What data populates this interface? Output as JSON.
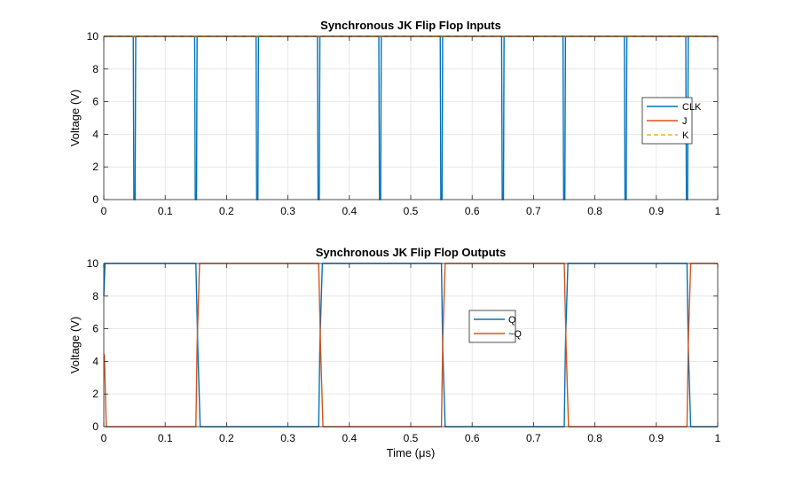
{
  "colors": {
    "blue": "#0072BD",
    "orange": "#D95319",
    "yellow": "#EDB120",
    "grid": "#e3e3e3",
    "axis": "#262626"
  },
  "chart_data": [
    {
      "type": "line",
      "title": "Synchronous JK Flip Flop Inputs",
      "xlabel": "",
      "ylabel": "Voltage (V)",
      "xlim": [
        0,
        1
      ],
      "ylim": [
        0,
        10
      ],
      "xticks": [
        "0",
        "0.1",
        "0.2",
        "0.3",
        "0.4",
        "0.5",
        "0.6",
        "0.7",
        "0.8",
        "0.9",
        "1"
      ],
      "yticks": [
        "0",
        "2",
        "4",
        "6",
        "8",
        "10"
      ],
      "grid": true,
      "legend_position": "right",
      "series": [
        {
          "name": "CLK",
          "color": "#0072BD",
          "dash": false,
          "x": [
            0,
            0.048,
            0.049,
            0.051,
            0.052,
            0.148,
            0.149,
            0.151,
            0.152,
            0.248,
            0.249,
            0.251,
            0.252,
            0.348,
            0.349,
            0.351,
            0.352,
            0.448,
            0.449,
            0.451,
            0.452,
            0.548,
            0.549,
            0.551,
            0.552,
            0.648,
            0.649,
            0.651,
            0.652,
            0.748,
            0.749,
            0.751,
            0.752,
            0.848,
            0.849,
            0.851,
            0.852,
            0.948,
            0.949,
            0.951,
            0.952,
            1
          ],
          "y": [
            10,
            10,
            0,
            0,
            10,
            10,
            0,
            0,
            10,
            10,
            0,
            0,
            10,
            10,
            0,
            0,
            10,
            10,
            0,
            0,
            10,
            10,
            0,
            0,
            10,
            10,
            0,
            0,
            10,
            10,
            0,
            0,
            10,
            10,
            0,
            0,
            10,
            10,
            0,
            0,
            10,
            10
          ]
        },
        {
          "name": "J",
          "color": "#D95319",
          "dash": false,
          "x": [
            0,
            1
          ],
          "y": [
            10,
            10
          ]
        },
        {
          "name": "K",
          "color": "#EDB120",
          "dash": true,
          "x": [
            0,
            1
          ],
          "y": [
            10,
            10
          ]
        }
      ]
    },
    {
      "type": "line",
      "title": "Synchronous JK Flip Flop Outputs",
      "xlabel": "Time  (μs)",
      "ylabel": "Voltage (V)",
      "xlim": [
        0,
        1
      ],
      "ylim": [
        0,
        10
      ],
      "xticks": [
        "0",
        "0.1",
        "0.2",
        "0.3",
        "0.4",
        "0.5",
        "0.6",
        "0.7",
        "0.8",
        "0.9",
        "1"
      ],
      "yticks": [
        "0",
        "2",
        "4",
        "6",
        "8",
        "10"
      ],
      "grid": true,
      "legend_position": "center",
      "series": [
        {
          "name": "Q",
          "color": "#0072BD",
          "dash": false,
          "x": [
            0,
            0.002,
            0.15,
            0.153,
            0.157,
            0.35,
            0.352,
            0.356,
            0.55,
            0.552,
            0.556,
            0.75,
            0.752,
            0.756,
            0.95,
            0.952,
            0.956,
            1
          ],
          "y": [
            8,
            10,
            10,
            5,
            0,
            0,
            5,
            10,
            10,
            5,
            0,
            0,
            5,
            10,
            10,
            5,
            0,
            0
          ]
        },
        {
          "name": "~Q",
          "color": "#D95319",
          "dash": false,
          "x": [
            0,
            0.001,
            0.004,
            0.15,
            0.152,
            0.156,
            0.35,
            0.353,
            0.357,
            0.55,
            0.552,
            0.556,
            0.75,
            0.753,
            0.757,
            0.95,
            0.952,
            0.956,
            1
          ],
          "y": [
            4.4,
            4.4,
            0,
            0,
            5,
            10,
            10,
            5,
            0,
            0,
            5,
            10,
            10,
            5,
            0,
            0,
            5,
            10,
            10
          ]
        }
      ]
    }
  ]
}
